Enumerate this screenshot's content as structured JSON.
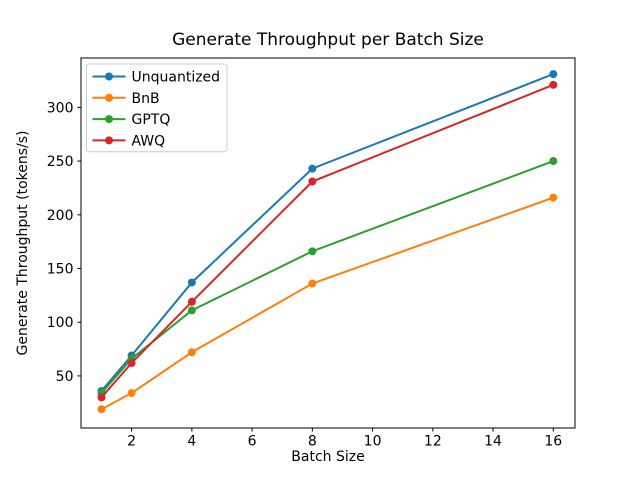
{
  "chart_data": {
    "type": "line",
    "title": "Generate Throughput per Batch Size",
    "xlabel": "Batch Size",
    "ylabel": "Generate Throughput (tokens/s)",
    "x": [
      1,
      2,
      4,
      8,
      16
    ],
    "series": [
      {
        "name": "Unquantized",
        "color": "#1f77b4",
        "values": [
          36,
          69,
          137,
          243,
          331
        ]
      },
      {
        "name": "BnB",
        "color": "#ff7f0e",
        "values": [
          19,
          34,
          72,
          136,
          216
        ]
      },
      {
        "name": "GPTQ",
        "color": "#2ca02c",
        "values": [
          34,
          66,
          111,
          166,
          250
        ]
      },
      {
        "name": "AWQ",
        "color": "#d62728",
        "values": [
          30,
          62,
          119,
          231,
          321
        ]
      }
    ],
    "xticks": [
      2,
      4,
      6,
      8,
      10,
      12,
      14,
      16
    ],
    "yticks": [
      50,
      100,
      150,
      200,
      250,
      300
    ],
    "xlim": [
      0.32,
      16.72
    ],
    "ylim": [
      1.5,
      346
    ],
    "grid": false,
    "legend_position": "upper left",
    "style": {
      "spine_color": "#000000",
      "tick_length": 3.5,
      "line_width": 2,
      "marker_radius": 4,
      "legend_border_color": "#cccccc",
      "legend_background": "rgba(255,255,255,0.85)",
      "tick_font_size": 14,
      "legend_font_size": 14
    }
  }
}
